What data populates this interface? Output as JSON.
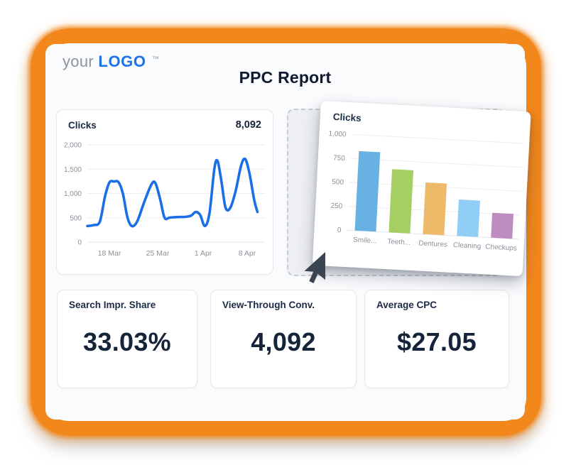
{
  "logo": {
    "prefix": "your",
    "name": "LOGO",
    "tm": "™"
  },
  "title": "PPC Report",
  "colors": {
    "frame_orange": "#f2871c",
    "brand_blue": "#1a73e8",
    "line_blue": "#1b6fe6",
    "dark_navy": "#16243a",
    "axis_gray": "#8b9199",
    "grid_gray": "#ecedf0",
    "cursor_dark": "#3b4552"
  },
  "chart_data": [
    {
      "type": "line",
      "title": "Clicks",
      "total": "8,092",
      "xlabel": "",
      "ylabel": "",
      "ylim": [
        0,
        2000
      ],
      "y_ticks": [
        0,
        500,
        1000,
        1500,
        2000
      ],
      "y_tick_labels": [
        "0",
        "500",
        "1,000",
        "1,500",
        "2,000"
      ],
      "x_tick_labels": [
        "18 Mar",
        "25 Mar",
        "1 Apr",
        "8 Apr"
      ],
      "x_tick_pos": [
        0.124,
        0.396,
        0.652,
        0.9
      ],
      "grid": true,
      "line_color": "#1b6fe6",
      "points": [
        [
          0.0,
          330
        ],
        [
          0.035,
          350
        ],
        [
          0.07,
          420
        ],
        [
          0.1,
          950
        ],
        [
          0.125,
          1230
        ],
        [
          0.15,
          1245
        ],
        [
          0.175,
          1235
        ],
        [
          0.2,
          1000
        ],
        [
          0.225,
          520
        ],
        [
          0.25,
          330
        ],
        [
          0.28,
          420
        ],
        [
          0.32,
          820
        ],
        [
          0.36,
          1180
        ],
        [
          0.383,
          1215
        ],
        [
          0.41,
          880
        ],
        [
          0.435,
          500
        ],
        [
          0.465,
          505
        ],
        [
          0.51,
          515
        ],
        [
          0.555,
          520
        ],
        [
          0.585,
          545
        ],
        [
          0.61,
          620
        ],
        [
          0.635,
          560
        ],
        [
          0.662,
          330
        ],
        [
          0.688,
          600
        ],
        [
          0.715,
          1500
        ],
        [
          0.733,
          1670
        ],
        [
          0.755,
          1250
        ],
        [
          0.778,
          710
        ],
        [
          0.805,
          705
        ],
        [
          0.835,
          1050
        ],
        [
          0.865,
          1560
        ],
        [
          0.888,
          1710
        ],
        [
          0.912,
          1430
        ],
        [
          0.94,
          860
        ],
        [
          0.958,
          620
        ]
      ]
    },
    {
      "type": "bar",
      "title": "Clicks",
      "categories": [
        "Smile...",
        "Teeth...",
        "Dentures",
        "Cleaning",
        "Checkups"
      ],
      "values": [
        830,
        660,
        540,
        380,
        260
      ],
      "bar_colors": [
        "#67b1e3",
        "#a5cf63",
        "#edba6a",
        "#90cdf7",
        "#bf8cc0"
      ],
      "ylim": [
        0,
        1000
      ],
      "y_ticks": [
        0,
        250,
        500,
        750,
        1000
      ],
      "y_tick_labels": [
        "0",
        "250",
        "500",
        "750",
        "1,000"
      ],
      "grid": true,
      "xlabel": "",
      "ylabel": ""
    }
  ],
  "kpis": [
    {
      "label": "Search Impr. Share",
      "value": "33.03%"
    },
    {
      "label": "View-Through Conv.",
      "value": "4,092"
    },
    {
      "label": "Average CPC",
      "value": "$27.05"
    }
  ]
}
